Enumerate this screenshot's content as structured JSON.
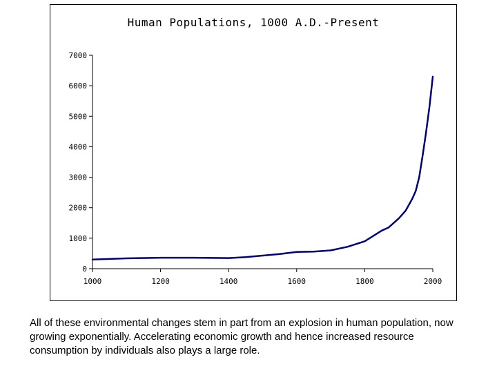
{
  "chart_data": {
    "type": "line",
    "title": "Human Populations, 1000 A.D.-Present",
    "xlabel": "",
    "ylabel": "",
    "xlim": [
      1000,
      2000
    ],
    "ylim": [
      0,
      7000
    ],
    "x_ticks": [
      "1000",
      "1200",
      "1400",
      "1600",
      "1800",
      "2000"
    ],
    "y_ticks": [
      "0",
      "1000",
      "2000",
      "3000",
      "4000",
      "5000",
      "6000",
      "7000"
    ],
    "grid": false,
    "line_color": "#000066",
    "series": [
      {
        "x": [
          1000,
          1100,
          1200,
          1300,
          1400,
          1450,
          1500,
          1550,
          1600,
          1650,
          1700,
          1750,
          1800,
          1850,
          1870,
          1900,
          1920,
          1940,
          1950,
          1960,
          1970,
          1980,
          1990,
          2000
        ],
        "y": [
          300,
          340,
          360,
          360,
          350,
          380,
          430,
          480,
          550,
          560,
          600,
          720,
          900,
          1250,
          1350,
          1650,
          1900,
          2300,
          2550,
          3000,
          3700,
          4450,
          5300,
          6300
        ]
      }
    ]
  },
  "caption": "All of these environmental changes stem in part from an explosion in human population, now growing exponentially.  Accelerating economic growth and hence increased resource consumption by individuals also plays a large role."
}
